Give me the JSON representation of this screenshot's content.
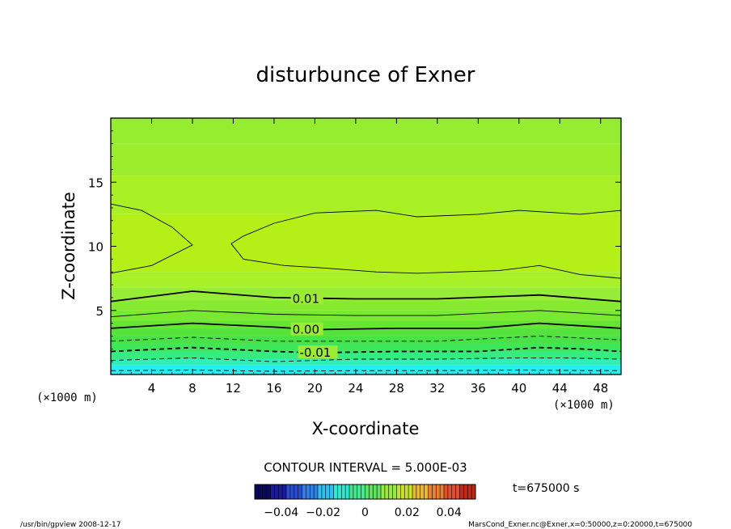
{
  "chart_data": {
    "type": "heatmap",
    "title": "disturbunce of Exner",
    "xlabel": "X-coordinate",
    "ylabel": "Z-coordinate",
    "x_unit_left": "(×1000 m)",
    "x_unit_right": "(×1000 m)",
    "xlim": [
      0,
      50
    ],
    "ylim": [
      0,
      20
    ],
    "x_ticks": [
      4,
      8,
      12,
      16,
      20,
      24,
      28,
      32,
      36,
      40,
      44,
      48
    ],
    "x_tick_labels": [
      "4",
      "8",
      "12",
      "16",
      "20",
      "24",
      "28",
      "32",
      "36",
      "40",
      "44",
      "48"
    ],
    "y_ticks": [
      5,
      10,
      15
    ],
    "y_tick_labels": [
      "5",
      "10",
      "15"
    ],
    "color_bands": [
      {
        "z": [
          0,
          0.7
        ],
        "color": "#22f0f0"
      },
      {
        "z": [
          0.7,
          1.2
        ],
        "color": "#30f0b8"
      },
      {
        "z": [
          1.2,
          1.8
        ],
        "color": "#34ec80"
      },
      {
        "z": [
          1.8,
          2.4
        ],
        "color": "#3ee65a"
      },
      {
        "z": [
          2.4,
          3.0
        ],
        "color": "#48e246"
      },
      {
        "z": [
          3.0,
          3.6
        ],
        "color": "#56e23c"
      },
      {
        "z": [
          3.6,
          4.2
        ],
        "color": "#66e432"
      },
      {
        "z": [
          4.2,
          5.0
        ],
        "color": "#78e830"
      },
      {
        "z": [
          5.0,
          5.8
        ],
        "color": "#88ea30"
      },
      {
        "z": [
          5.8,
          6.8
        ],
        "color": "#96ec36"
      },
      {
        "z": [
          6.8,
          8.0
        ],
        "color": "#a8f028"
      },
      {
        "z": [
          8.0,
          12.5
        ],
        "color": "#b4f018"
      },
      {
        "z": [
          12.5,
          15.5
        ],
        "color": "#a8f024"
      },
      {
        "z": [
          15.5,
          18.0
        ],
        "color": "#9cee2c"
      },
      {
        "z": [
          18.0,
          20.0
        ],
        "color": "#96ec30"
      }
    ],
    "contours": [
      {
        "level": -0.015,
        "style": "dashed",
        "weight": "thin",
        "points": [
          [
            0,
            0.3
          ],
          [
            8,
            0.35
          ],
          [
            16,
            0.25
          ],
          [
            24,
            0.3
          ],
          [
            32,
            0.3
          ],
          [
            40,
            0.35
          ],
          [
            48,
            0.3
          ],
          [
            50,
            0.3
          ]
        ]
      },
      {
        "level": -0.0125,
        "style": "dashed",
        "weight": "thin",
        "points": [
          [
            0,
            1.1
          ],
          [
            8,
            1.3
          ],
          [
            16,
            1.0
          ],
          [
            24,
            1.2
          ],
          [
            32,
            1.2
          ],
          [
            40,
            1.3
          ],
          [
            44,
            1.3
          ],
          [
            50,
            1.2
          ]
        ]
      },
      {
        "level": -0.01,
        "style": "dashed",
        "weight": "thick",
        "points": [
          [
            0,
            1.8
          ],
          [
            8,
            2.1
          ],
          [
            16,
            1.8
          ],
          [
            20,
            1.7
          ],
          [
            28,
            1.8
          ],
          [
            36,
            1.8
          ],
          [
            42,
            2.1
          ],
          [
            46,
            2.0
          ],
          [
            50,
            1.8
          ]
        ]
      },
      {
        "level": -0.005,
        "style": "dashed",
        "weight": "thin",
        "points": [
          [
            0,
            2.6
          ],
          [
            8,
            2.9
          ],
          [
            16,
            2.6
          ],
          [
            24,
            2.6
          ],
          [
            32,
            2.6
          ],
          [
            42,
            3.0
          ],
          [
            50,
            2.7
          ]
        ]
      },
      {
        "level": 0.0,
        "style": "solid",
        "weight": "thick",
        "points": [
          [
            0,
            3.6
          ],
          [
            8,
            4.0
          ],
          [
            16,
            3.7
          ],
          [
            20,
            3.5
          ],
          [
            28,
            3.6
          ],
          [
            36,
            3.6
          ],
          [
            42,
            4.0
          ],
          [
            50,
            3.6
          ]
        ]
      },
      {
        "level": 0.005,
        "style": "solid",
        "weight": "thin",
        "points": [
          [
            0,
            4.5
          ],
          [
            8,
            5.0
          ],
          [
            16,
            4.7
          ],
          [
            24,
            4.6
          ],
          [
            32,
            4.6
          ],
          [
            42,
            5.0
          ],
          [
            50,
            4.6
          ]
        ]
      },
      {
        "level": 0.01,
        "style": "solid",
        "weight": "thick",
        "points": [
          [
            0,
            5.7
          ],
          [
            8,
            6.5
          ],
          [
            16,
            6.0
          ],
          [
            24,
            5.9
          ],
          [
            32,
            5.9
          ],
          [
            42,
            6.2
          ],
          [
            50,
            5.7
          ]
        ]
      },
      {
        "level": 0.015,
        "style": "solid",
        "weight": "thin",
        "points": [
          [
            0,
            7.9
          ],
          [
            4,
            8.5
          ],
          [
            8,
            10.1
          ],
          [
            6,
            11.5
          ],
          [
            3,
            12.8
          ],
          [
            0,
            13.3
          ]
        ]
      },
      {
        "level": 0.015,
        "style": "solid",
        "weight": "thin",
        "points": [
          [
            11.8,
            10.2
          ],
          [
            13,
            9.0
          ],
          [
            17,
            8.5
          ],
          [
            21,
            8.3
          ],
          [
            26,
            8.0
          ],
          [
            30,
            7.9
          ],
          [
            34,
            8.0
          ],
          [
            38,
            8.1
          ],
          [
            42,
            8.5
          ],
          [
            46,
            7.8
          ],
          [
            50,
            7.5
          ],
          [
            50,
            12.8
          ],
          [
            46,
            12.5
          ],
          [
            40,
            12.8
          ],
          [
            36,
            12.5
          ],
          [
            30,
            12.3
          ],
          [
            26,
            12.8
          ],
          [
            20,
            12.6
          ],
          [
            16,
            11.8
          ],
          [
            13,
            10.8
          ],
          [
            11.8,
            10.2
          ]
        ]
      }
    ],
    "contour_labels": [
      {
        "text": "0.01",
        "x": 17.8,
        "z": 5.9
      },
      {
        "text": "0.00",
        "x": 17.8,
        "z": 3.5
      },
      {
        "text": "-0.01",
        "x": 18.5,
        "z": 1.7
      }
    ],
    "contour_interval_text": "CONTOUR INTERVAL = 5.000E-03",
    "colorbar": {
      "tick_labels": [
        "−0.04",
        "−0.02",
        "0",
        "0.02",
        "0.04"
      ],
      "colors": [
        "#0a0a5a",
        "#1a1a9a",
        "#2a4ad0",
        "#3080e8",
        "#30c0f0",
        "#30e8d0",
        "#40e890",
        "#60e060",
        "#98e840",
        "#c8e030",
        "#e8b830",
        "#e88030",
        "#e05030",
        "#c02818"
      ]
    },
    "time_label": "t=675000 s"
  },
  "footer": {
    "left": "/usr/bin/gpview  2008-12-17",
    "right": "MarsCond_Exner.nc@Exner,x=0:50000,z=0:20000,t=675000"
  }
}
